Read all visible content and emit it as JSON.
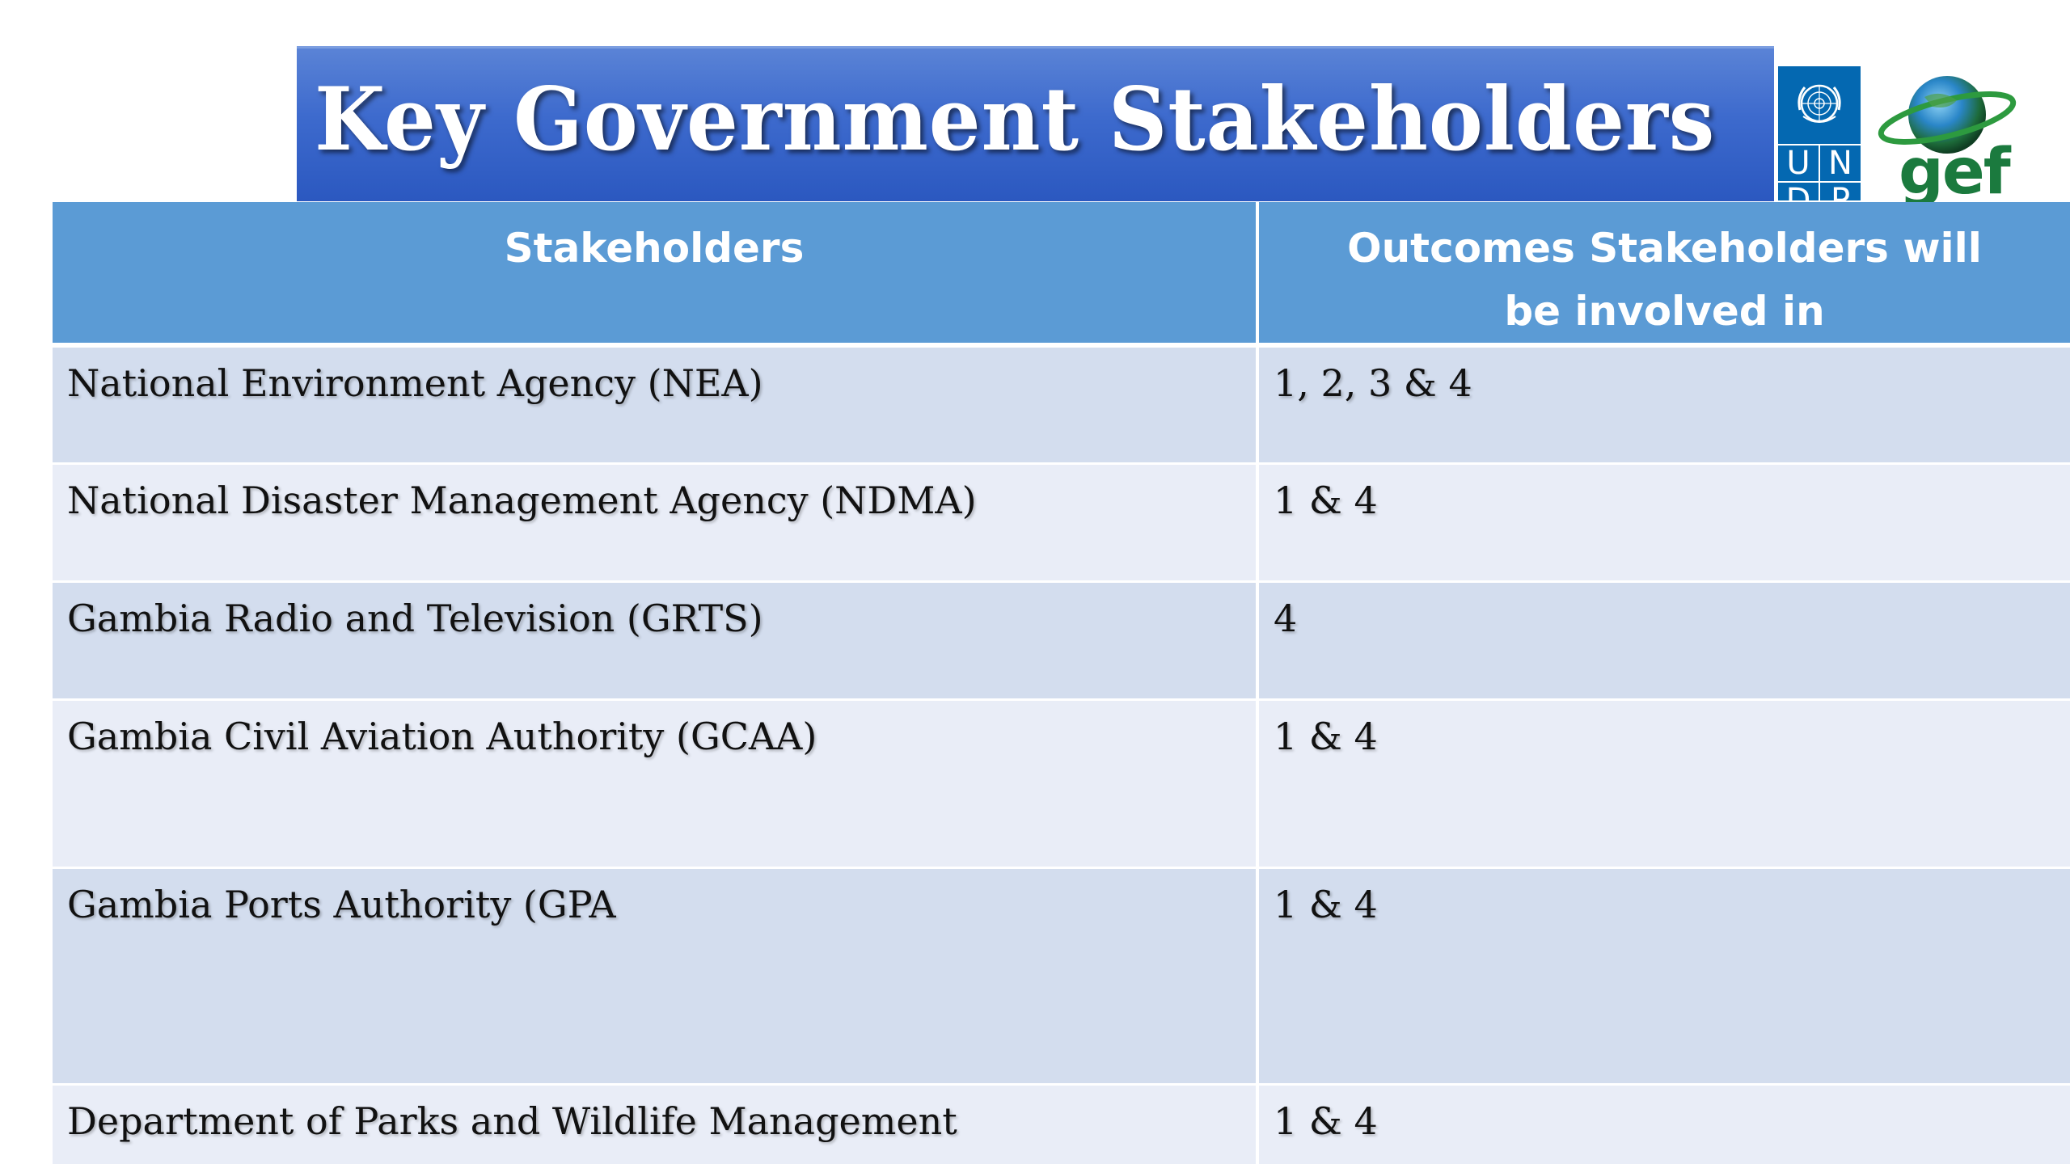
{
  "slide": {
    "title": "Key Government Stakeholders",
    "logos": {
      "undp_letters": [
        "U",
        "N",
        "D",
        "P"
      ],
      "gef_text": "gef",
      "undp_icon": "un-emblem-icon",
      "gef_icon": "globe-icon"
    },
    "colors": {
      "banner": "#3d6acd",
      "header": "#5b9bd5",
      "row_odd": "#d3ddee",
      "row_even": "#e9edf7",
      "undp_blue": "#0468b1",
      "gef_green": "#1b7a3e"
    },
    "table": {
      "headers": {
        "stakeholders": "Stakeholders",
        "outcomes_line1": "Outcomes Stakeholders will",
        "outcomes_line2": "be involved in"
      },
      "rows": [
        {
          "stakeholder": "National Environment Agency (NEA)",
          "outcomes": "1, 2, 3 & 4"
        },
        {
          "stakeholder": "National Disaster Management Agency (NDMA)",
          "outcomes": "1 & 4"
        },
        {
          "stakeholder": "Gambia Radio and Television (GRTS)",
          "outcomes": "4"
        },
        {
          "stakeholder": "Gambia Civil Aviation Authority (GCAA)",
          "outcomes": "1 & 4"
        },
        {
          "stakeholder": "Gambia Ports Authority (GPA",
          "outcomes": "1 & 4"
        },
        {
          "stakeholder": "Department of Parks and Wildlife Management",
          "outcomes": "1 & 4"
        }
      ]
    }
  }
}
